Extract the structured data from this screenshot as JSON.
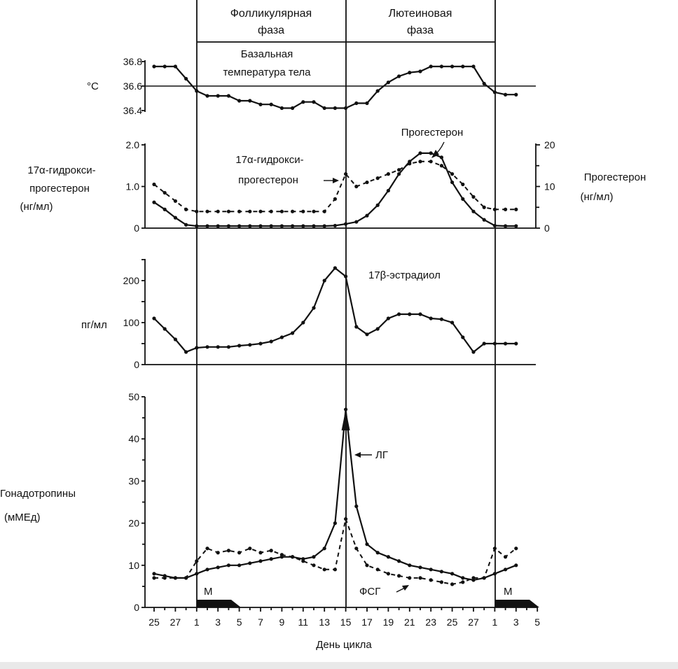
{
  "phases": {
    "follicular": [
      "Фолликулярная",
      "фаза"
    ],
    "luteal": [
      "Лютеиновая",
      "фаза"
    ]
  },
  "colors": {
    "ink": "#111111",
    "background": "#ffffff"
  },
  "menses_label": "М",
  "xlabel": "День цикла",
  "x_ticks": [
    "25",
    "27",
    "1",
    "3",
    "5",
    "7",
    "9",
    "11",
    "13",
    "15",
    "17",
    "19",
    "21",
    "23",
    "25",
    "27",
    "1",
    "3",
    "5"
  ],
  "chart_data": [
    {
      "type": "line",
      "panel": "temperature",
      "title": [
        "Базальная",
        "температура тела"
      ],
      "ylabel": "°C",
      "ylim": [
        36.4,
        36.8
      ],
      "yticks": [
        "36.8",
        "36.6",
        "36.4"
      ],
      "reference_line": 36.6,
      "x": [
        -3,
        -2,
        -1,
        0,
        1,
        2,
        3,
        4,
        5,
        6,
        7,
        8,
        9,
        10,
        11,
        12,
        13,
        14,
        15,
        16,
        17,
        18,
        19,
        20,
        21,
        22,
        23,
        24,
        25,
        26,
        27,
        28,
        29,
        30,
        31
      ],
      "series": [
        {
          "values": [
            36.76,
            36.76,
            36.76,
            36.66,
            36.56,
            36.52,
            36.52,
            36.52,
            36.48,
            36.48,
            36.45,
            36.45,
            36.42,
            36.42,
            36.47,
            36.47,
            36.42,
            36.42,
            36.42,
            36.46,
            36.46,
            36.56,
            36.63,
            36.68,
            36.71,
            36.72,
            36.76,
            36.76,
            36.76,
            36.76,
            36.76,
            36.62,
            36.55,
            36.53,
            36.53
          ]
        }
      ]
    },
    {
      "type": "line",
      "panel": "progestins",
      "ylabel": [
        "17α-гидрокси-",
        "прогестерон",
        "(нг/мл)"
      ],
      "ylim": [
        0,
        2.0
      ],
      "yticks": [
        "0",
        "1.0",
        "2.0"
      ],
      "ylabel_right": [
        "Прогестерон",
        "(нг/мл)"
      ],
      "ylim_right": [
        0,
        20
      ],
      "yticks_right": [
        "0",
        "10",
        "20"
      ],
      "annotations": [
        [
          "Прогестерон"
        ],
        [
          "17α-гидрокси-",
          "прогестерон"
        ]
      ],
      "x": [
        -3,
        -2,
        -1,
        0,
        1,
        2,
        3,
        4,
        5,
        6,
        7,
        8,
        9,
        10,
        11,
        12,
        13,
        14,
        15,
        16,
        17,
        18,
        19,
        20,
        21,
        22,
        23,
        24,
        25,
        26,
        27,
        28,
        29,
        30,
        31
      ],
      "series": [
        {
          "axis": "right",
          "style": "solid",
          "values": [
            6.2,
            4.5,
            2.5,
            0.8,
            0.5,
            0.5,
            0.5,
            0.5,
            0.5,
            0.5,
            0.5,
            0.5,
            0.5,
            0.5,
            0.5,
            0.5,
            0.5,
            0.6,
            1,
            1.5,
            3,
            5.5,
            9,
            13,
            16,
            18,
            18,
            17,
            11,
            7,
            4,
            2,
            0.6,
            0.5,
            0.5
          ]
        },
        {
          "axis": "left",
          "style": "dashed",
          "values": [
            1.05,
            0.85,
            0.65,
            0.45,
            0.4,
            0.4,
            0.4,
            0.4,
            0.4,
            0.4,
            0.4,
            0.4,
            0.4,
            0.4,
            0.4,
            0.4,
            0.4,
            0.7,
            1.3,
            1.0,
            1.1,
            1.2,
            1.3,
            1.4,
            1.55,
            1.6,
            1.6,
            1.5,
            1.3,
            1.05,
            0.75,
            0.5,
            0.45,
            0.45,
            0.45
          ]
        }
      ]
    },
    {
      "type": "line",
      "panel": "estradiol",
      "ylabel": "пг/мл",
      "ylim": [
        0,
        250
      ],
      "yticks": [
        "0",
        "100",
        "200"
      ],
      "annotation": "17β-эстрадиол",
      "x": [
        -3,
        -2,
        -1,
        0,
        1,
        2,
        3,
        4,
        5,
        6,
        7,
        8,
        9,
        10,
        11,
        12,
        13,
        14,
        15,
        16,
        17,
        18,
        19,
        20,
        21,
        22,
        23,
        24,
        25,
        26,
        27,
        28,
        29,
        30,
        31
      ],
      "series": [
        {
          "values": [
            110,
            85,
            60,
            30,
            40,
            42,
            42,
            42,
            45,
            47,
            50,
            55,
            65,
            75,
            100,
            135,
            200,
            230,
            210,
            90,
            72,
            85,
            110,
            120,
            120,
            120,
            110,
            108,
            100,
            65,
            30,
            50,
            50,
            50,
            50
          ]
        }
      ]
    },
    {
      "type": "line",
      "panel": "gonadotropins",
      "ylabel": [
        "Гонадотропины",
        "(мМЕд)"
      ],
      "ylim": [
        0,
        50
      ],
      "yticks": [
        "0",
        "10",
        "20",
        "30",
        "40",
        "50"
      ],
      "annotations": [
        "ЛГ",
        "ФСГ"
      ],
      "x": [
        -3,
        -2,
        -1,
        0,
        1,
        2,
        3,
        4,
        5,
        6,
        7,
        8,
        9,
        10,
        11,
        12,
        13,
        14,
        15,
        16,
        17,
        18,
        19,
        20,
        21,
        22,
        23,
        24,
        25,
        26,
        27,
        28,
        29,
        30,
        31
      ],
      "series": [
        {
          "style": "solid",
          "values": [
            8,
            7.5,
            7,
            7,
            8,
            9,
            9.5,
            10,
            10,
            10.5,
            11,
            11.5,
            12,
            12,
            11.5,
            12,
            14,
            20,
            47,
            24,
            15,
            13,
            12,
            11,
            10,
            9.5,
            9,
            8.5,
            8,
            7,
            6.5,
            7,
            8,
            9,
            10
          ]
        },
        {
          "style": "dashed",
          "values": [
            7,
            7,
            7,
            7,
            11,
            14,
            13,
            13.5,
            13,
            14,
            13,
            13.5,
            12.5,
            12,
            11,
            10,
            9,
            9,
            21,
            14,
            10,
            9,
            8,
            7.5,
            7,
            7,
            6.5,
            6,
            5.5,
            6,
            7,
            7,
            14,
            12,
            14
          ]
        }
      ]
    }
  ]
}
